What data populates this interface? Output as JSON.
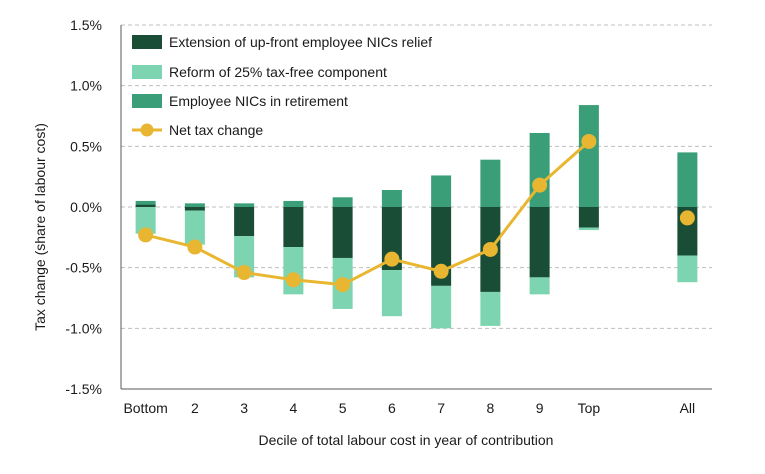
{
  "chart_data": {
    "type": "bar",
    "stacked": true,
    "title": "",
    "xlabel": "Decile of total labour cost in year of contribution",
    "ylabel": "Tax change (share of labour cost)",
    "ylim": [
      -1.5,
      1.5
    ],
    "yticks": [
      {
        "value": 1.5,
        "label": "1.5%"
      },
      {
        "value": 1.0,
        "label": "1.0%"
      },
      {
        "value": 0.5,
        "label": "0.5%"
      },
      {
        "value": 0.0,
        "label": "0.0%"
      },
      {
        "value": -0.5,
        "label": "-0.5%"
      },
      {
        "value": -1.0,
        "label": "-1.0%"
      },
      {
        "value": -1.5,
        "label": "-1.5%"
      }
    ],
    "grid": "horizontal dashed",
    "legend_position": "top-left",
    "categories": [
      "Bottom",
      "2",
      "3",
      "4",
      "5",
      "6",
      "7",
      "8",
      "9",
      "Top",
      "",
      "All"
    ],
    "series": [
      {
        "name": "Extension of up-front employee NICs relief",
        "kind": "bar",
        "color": "#1a4d35",
        "values": [
          0.02,
          -0.03,
          -0.24,
          -0.33,
          -0.42,
          -0.52,
          -0.65,
          -0.7,
          -0.58,
          -0.17,
          null,
          -0.4
        ]
      },
      {
        "name": "Reform of 25% tax-free component",
        "kind": "bar",
        "color": "#7dd4b0",
        "values": [
          -0.22,
          -0.28,
          -0.34,
          -0.39,
          -0.42,
          -0.38,
          -0.35,
          -0.28,
          -0.14,
          -0.02,
          null,
          -0.22
        ]
      },
      {
        "name": "Employee NICs in retirement",
        "kind": "bar",
        "color": "#3a9e78",
        "values": [
          0.03,
          0.03,
          0.03,
          0.05,
          0.08,
          0.14,
          0.26,
          0.39,
          0.61,
          0.84,
          null,
          0.45
        ]
      },
      {
        "name": "Net tax change",
        "kind": "line",
        "color": "#e8b630",
        "values": [
          -0.23,
          -0.33,
          -0.54,
          -0.6,
          -0.64,
          -0.43,
          -0.53,
          -0.35,
          0.18,
          0.54,
          null,
          -0.09
        ]
      }
    ]
  }
}
